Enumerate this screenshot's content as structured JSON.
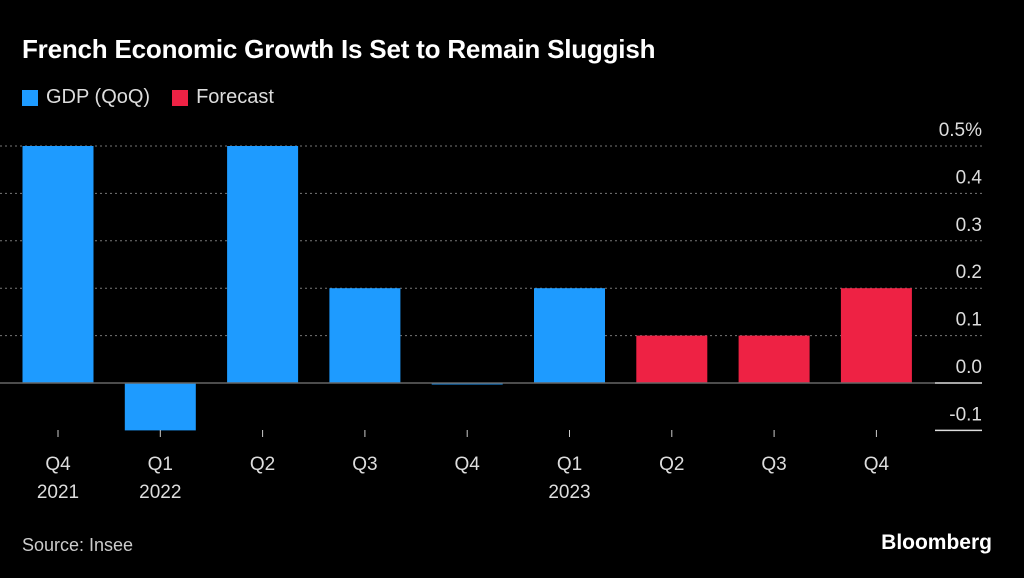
{
  "chart_data": {
    "type": "bar",
    "title": "French Economic Growth Is Set to Remain Sluggish",
    "legend": [
      {
        "name": "GDP (QoQ)",
        "color": "#1e9bff"
      },
      {
        "name": "Forecast",
        "color": "#ee2244"
      }
    ],
    "legend_placement": "top-left",
    "categories": [
      {
        "q": "Q4",
        "year": "2021"
      },
      {
        "q": "Q1",
        "year": "2022"
      },
      {
        "q": "Q2",
        "year": ""
      },
      {
        "q": "Q3",
        "year": ""
      },
      {
        "q": "Q4",
        "year": ""
      },
      {
        "q": "Q1",
        "year": "2023"
      },
      {
        "q": "Q2",
        "year": ""
      },
      {
        "q": "Q3",
        "year": ""
      },
      {
        "q": "Q4",
        "year": ""
      }
    ],
    "values": [
      0.5,
      -0.1,
      0.5,
      0.2,
      0.0,
      0.2,
      0.1,
      0.1,
      0.2
    ],
    "series_index": [
      0,
      0,
      0,
      0,
      0,
      0,
      1,
      1,
      1
    ],
    "ylim": [
      -0.1,
      0.5
    ],
    "yticks": [
      "0.5%",
      "0.4",
      "0.3",
      "0.2",
      "0.1",
      "0.0",
      "-0.1"
    ],
    "ytick_values": [
      0.5,
      0.4,
      0.3,
      0.2,
      0.1,
      0.0,
      -0.1
    ],
    "y_axis_position": "right",
    "grid": true
  },
  "footer": {
    "source": "Source: Insee",
    "logo": "Bloomberg"
  }
}
